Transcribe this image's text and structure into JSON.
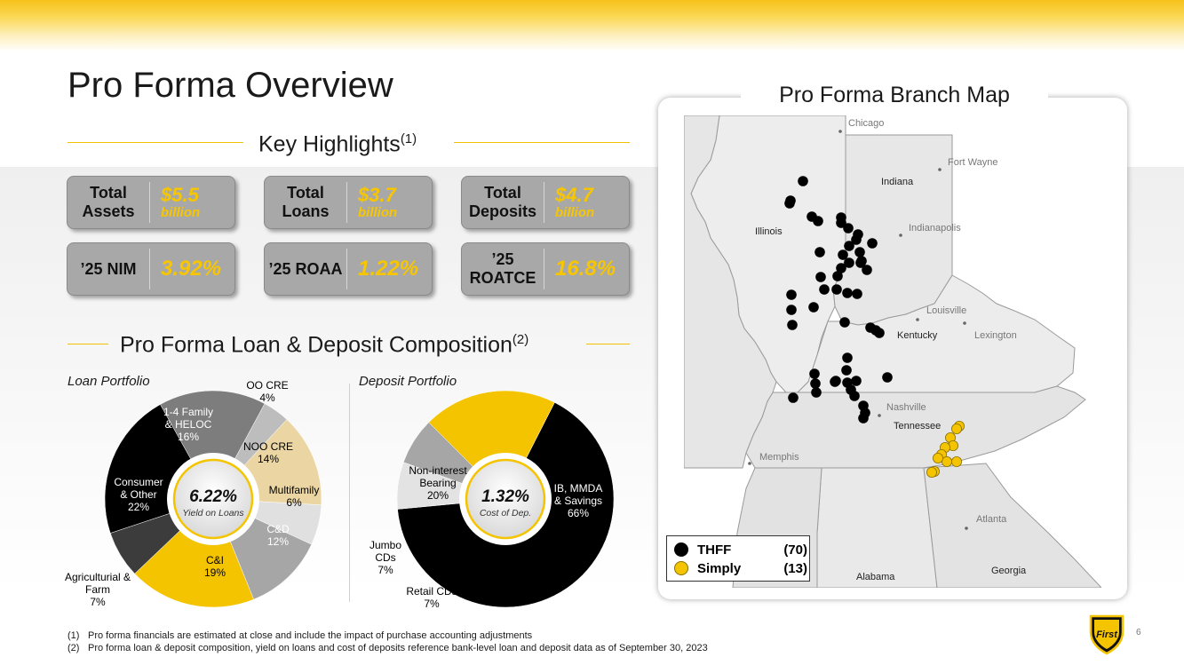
{
  "page": {
    "title": "Pro Forma Overview",
    "page_number": "6"
  },
  "highlights": {
    "title": "Key Highlights",
    "footnote_ref": "(1)",
    "kpis": [
      {
        "label": "Total Assets",
        "value": "$5.5",
        "unit": "billion"
      },
      {
        "label": "Total Loans",
        "value": "$3.7",
        "unit": "billion"
      },
      {
        "label": "Total Deposits",
        "value": "$4.7",
        "unit": "billion"
      },
      {
        "label": "’25 NIM",
        "value": "3.92%"
      },
      {
        "label": "’25 ROAA",
        "value": "1.22%"
      },
      {
        "label": "’25 ROATCE",
        "value": "16.8%"
      }
    ]
  },
  "composition": {
    "title": "Pro Forma Loan & Deposit Composition",
    "footnote_ref": "(2)"
  },
  "colors": {
    "gold": "#f5c400",
    "black": "#000000",
    "dark_gray": "#3c3c3c",
    "mid_gray": "#7d7d7d",
    "light_gray": "#a6a6a6",
    "pale_gray": "#dcdcdc",
    "tan": "#ead5a3"
  },
  "chart_data": [
    {
      "type": "pie",
      "title": "Loan Portfolio",
      "center_value": "6.22%",
      "center_label": "Yield on Loans",
      "slices": [
        {
          "label": "C&I",
          "value": 19,
          "color": "#f5c400"
        },
        {
          "label": "Agriculturial & Farm",
          "value": 7,
          "color": "#3c3c3c"
        },
        {
          "label": "Consumer & Other",
          "value": 22,
          "color": "#000000"
        },
        {
          "label": "1-4 Family & HELOC",
          "value": 16,
          "color": "#7d7d7d"
        },
        {
          "label": "OO CRE",
          "value": 4,
          "color": "#bdbdbd"
        },
        {
          "label": "NOO CRE",
          "value": 14,
          "color": "#ead5a3"
        },
        {
          "label": "Multifamily",
          "value": 6,
          "color": "#e0e0e0"
        },
        {
          "label": "C&D",
          "value": 12,
          "color": "#a6a6a6"
        }
      ]
    },
    {
      "type": "pie",
      "title": "Deposit Portfolio",
      "center_value": "1.32%",
      "center_label": "Cost of Dep.",
      "slices": [
        {
          "label": "IB, MMDA & Savings",
          "value": 66,
          "color": "#000000"
        },
        {
          "label": "Retail CDs",
          "value": 7,
          "color": "#e3e3e3"
        },
        {
          "label": "Jumbo CDs",
          "value": 7,
          "color": "#a6a6a6"
        },
        {
          "label": "Non-interest Bearing",
          "value": 20,
          "color": "#f5c400"
        }
      ]
    }
  ],
  "map": {
    "title": "Pro Forma Branch Map",
    "states": [
      "Illinois",
      "Indiana",
      "Kentucky",
      "Tennessee",
      "Alabama",
      "Georgia"
    ],
    "cities": [
      "Chicago",
      "Fort Wayne",
      "Indianapolis",
      "Louisville",
      "Lexington",
      "Nashville",
      "Memphis",
      "Atlanta"
    ],
    "legend": [
      {
        "name": "THFF",
        "count": "(70)",
        "color": "#000000"
      },
      {
        "name": "Simply",
        "count": "(13)",
        "color": "#f5c400"
      }
    ]
  },
  "footnotes": [
    {
      "num": "(1)",
      "text": "Pro forma financials are estimated at close and include the impact of purchase accounting adjustments"
    },
    {
      "num": "(2)",
      "text": "Pro forma loan & deposit composition, yield on loans and cost of deposits reference bank-level loan and deposit data as of September 30, 2023"
    }
  ],
  "logo_text": "First"
}
